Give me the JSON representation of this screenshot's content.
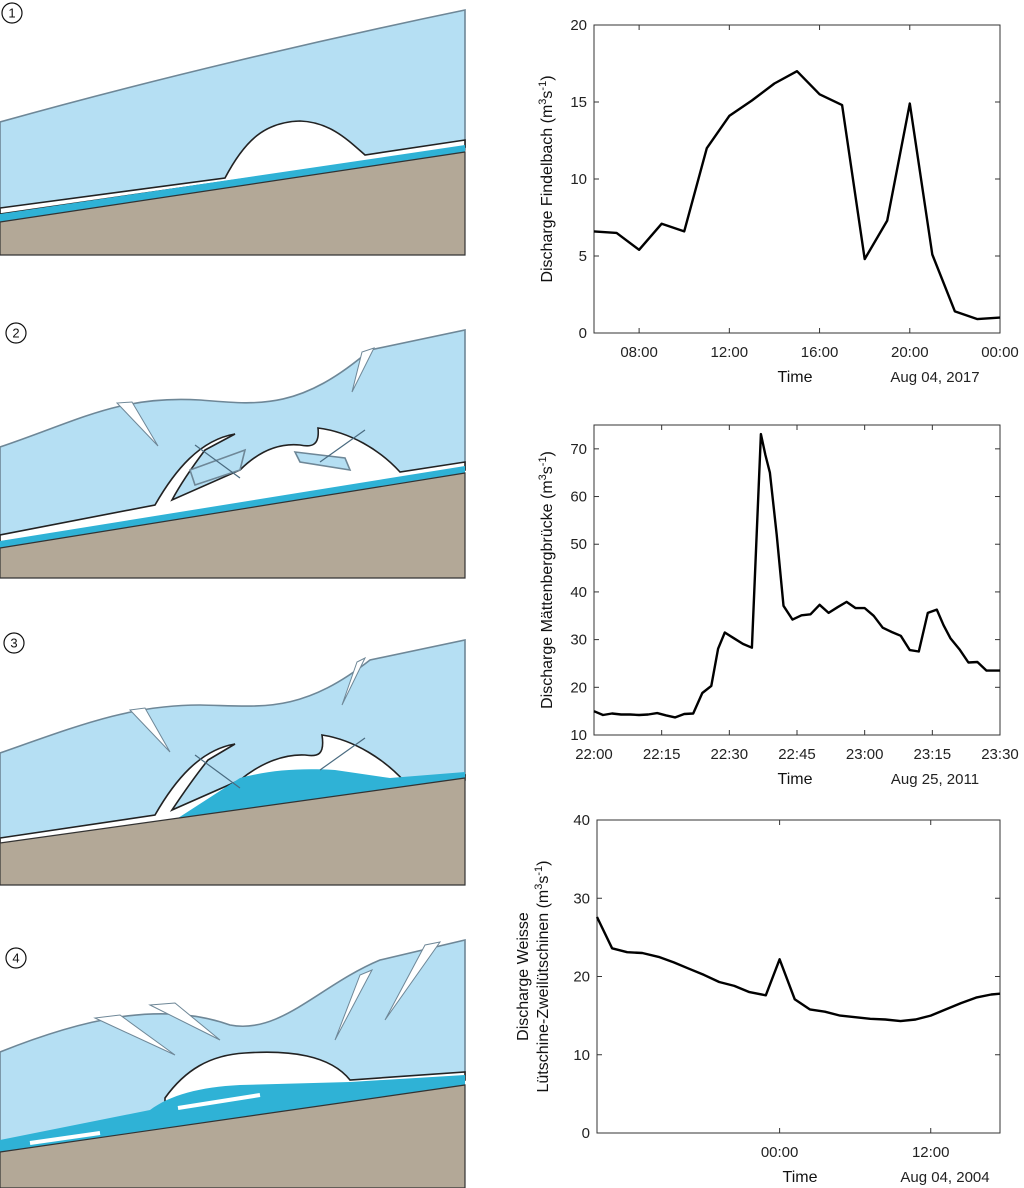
{
  "panels": [
    {
      "number": "1"
    },
    {
      "number": "2"
    },
    {
      "number": "3"
    },
    {
      "number": "4"
    }
  ],
  "colors": {
    "ice": "#b5dff3",
    "water": "#2fb2d6",
    "ground": "#b3a897",
    "line": "#000000"
  },
  "chart_data": [
    {
      "type": "line",
      "title": "",
      "xlabel": "Time",
      "ylabel_main": "Discharge Findelbach (m",
      "ylabel_sup1": "3",
      "ylabel_mid": "s",
      "ylabel_sup2": "-1",
      "ylabel_end": ")",
      "date_label": "Aug 04, 2017",
      "x_unit": "hours",
      "xlim": [
        6,
        24
      ],
      "ylim": [
        0,
        20
      ],
      "yticks": [
        0,
        5,
        10,
        15,
        20
      ],
      "xticks": [
        8,
        12,
        16,
        20,
        24
      ],
      "xtick_labels": [
        "08:00",
        "12:00",
        "16:00",
        "20:00",
        "00:00"
      ],
      "x": [
        6,
        7,
        8,
        9,
        10,
        11,
        12,
        13,
        14,
        15,
        16,
        17,
        18,
        19,
        20,
        21,
        22,
        23,
        24
      ],
      "y": [
        6.6,
        6.5,
        5.4,
        7.1,
        6.6,
        12.0,
        14.1,
        15.1,
        16.2,
        17.0,
        15.5,
        14.8,
        4.8,
        7.3,
        14.9,
        5.1,
        1.4,
        0.9,
        1.0
      ]
    },
    {
      "type": "line",
      "title": "",
      "xlabel": "Time",
      "ylabel_main": "Discharge Mättenbergbrücke (m",
      "ylabel_sup1": "3",
      "ylabel_mid": "s",
      "ylabel_sup2": "-1",
      "ylabel_end": ")",
      "date_label": "Aug 25, 2011",
      "x_unit": "minutes",
      "xlim": [
        1320,
        1410
      ],
      "ylim": [
        10,
        75
      ],
      "yticks": [
        10,
        20,
        30,
        40,
        50,
        60,
        70
      ],
      "xticks": [
        1320,
        1335,
        1350,
        1365,
        1380,
        1395,
        1410
      ],
      "xtick_labels": [
        "22:00",
        "22:15",
        "22:30",
        "22:45",
        "23:00",
        "23:15",
        "23:30"
      ],
      "x": [
        1320,
        1322,
        1324,
        1326,
        1328,
        1330,
        1332,
        1334,
        1336,
        1338,
        1340,
        1342,
        1344,
        1346,
        1347.5,
        1349,
        1351,
        1353,
        1355,
        1357,
        1358,
        1359,
        1360.5,
        1362,
        1364,
        1366,
        1368,
        1370,
        1372,
        1374,
        1376,
        1378,
        1380,
        1382,
        1384,
        1386,
        1388,
        1390,
        1392,
        1394,
        1396,
        1397.5,
        1399,
        1401,
        1403,
        1405,
        1407,
        1408.5,
        1410
      ],
      "y": [
        15.0,
        14.2,
        14.5,
        14.3,
        14.3,
        14.2,
        14.3,
        14.6,
        14.1,
        13.7,
        14.4,
        14.5,
        18.8,
        20.3,
        28.1,
        31.5,
        30.3,
        29.1,
        28.3,
        73.1,
        68.7,
        65.0,
        52.0,
        37.1,
        34.2,
        35.1,
        35.3,
        37.3,
        35.6,
        36.8,
        37.9,
        36.6,
        36.6,
        35.0,
        32.5,
        31.6,
        30.8,
        27.8,
        27.5,
        35.6,
        36.3,
        33.0,
        30.3,
        28.0,
        25.2,
        25.3,
        23.5,
        23.5,
        23.5
      ]
    },
    {
      "type": "line",
      "title": "",
      "xlabel": "Time",
      "ylabel_line1": "Discharge Weisse",
      "ylabel_main": "Lütschine-Zweilütschinen (m",
      "ylabel_sup1": "3",
      "ylabel_mid": "s",
      "ylabel_sup2": "-1",
      "ylabel_end": ")",
      "date_label": "Aug 04, 2004",
      "x_unit": "hours relative to 00:00",
      "xlim": [
        -14.5,
        17.5
      ],
      "ylim": [
        0,
        40
      ],
      "yticks": [
        0,
        10,
        20,
        30,
        40
      ],
      "xticks": [
        0,
        12
      ],
      "xtick_labels": [
        "00:00",
        "12:00"
      ],
      "x": [
        -14.5,
        -13.3,
        -12.1,
        -10.9,
        -9.6,
        -8.4,
        -7.2,
        -6.0,
        -4.8,
        -3.6,
        -2.4,
        -1.1,
        0.0,
        1.2,
        2.4,
        3.6,
        4.8,
        6.0,
        7.2,
        8.4,
        9.6,
        10.8,
        12.0,
        13.2,
        14.4,
        15.6,
        16.8,
        17.5
      ],
      "y": [
        27.6,
        23.6,
        23.1,
        23.0,
        22.5,
        21.8,
        21.0,
        20.2,
        19.3,
        18.8,
        18.0,
        17.6,
        22.2,
        17.1,
        15.8,
        15.5,
        15.0,
        14.8,
        14.6,
        14.5,
        14.3,
        14.5,
        15.0,
        15.8,
        16.6,
        17.3,
        17.7,
        17.8
      ]
    }
  ]
}
